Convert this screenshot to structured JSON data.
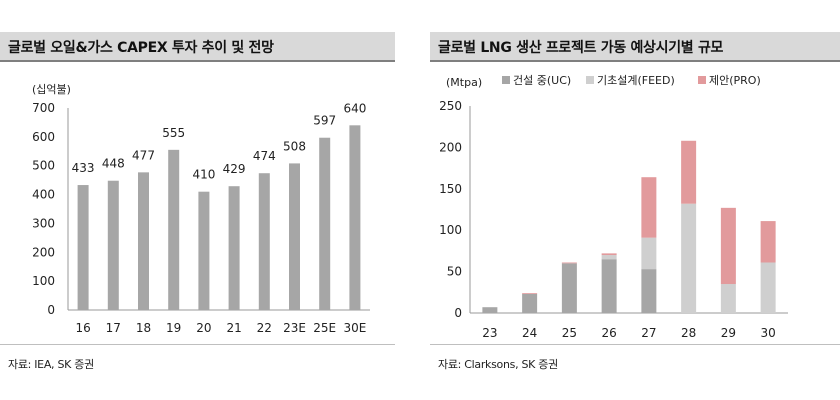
{
  "charts": {
    "left": {
      "title": "글로벌 오일&가스 CAPEX 투자 추이 및 전망",
      "source": "자료: IEA, SK 증권"
    },
    "right": {
      "title": "글로벌 LNG 생산 프로젝트 가동 예상시기별 규모",
      "source": "자료: Clarksons, SK 증권"
    }
  },
  "chart_data": [
    {
      "type": "bar",
      "title": "글로벌 오일&가스 CAPEX 투자 추이 및 전망",
      "unit_label": "(십억불)",
      "categories": [
        "16",
        "17",
        "18",
        "19",
        "20",
        "21",
        "22",
        "23E",
        "25E",
        "30E"
      ],
      "values": [
        433,
        448,
        477,
        555,
        410,
        429,
        474,
        508,
        597,
        640
      ],
      "data_labels": [
        "433",
        "448",
        "477",
        "555",
        "410",
        "429",
        "474",
        "508",
        "597",
        "640"
      ],
      "ylim": [
        0,
        700
      ],
      "yticks": [
        "0",
        "100",
        "200",
        "300",
        "400",
        "500",
        "600",
        "700"
      ],
      "color": "#a6a6a6"
    },
    {
      "type": "bar",
      "stacked": true,
      "title": "글로벌 LNG 생산 프로젝트 가동 예상시기별 규모",
      "unit_label": "(Mtpa)",
      "categories": [
        "23",
        "24",
        "25",
        "26",
        "27",
        "28",
        "29",
        "30"
      ],
      "series": [
        {
          "name": "건설 중(UC)",
          "values": [
            7,
            23,
            60,
            65,
            53,
            0,
            0,
            0
          ],
          "color": "#a6a6a6"
        },
        {
          "name": "기초설계(FEED)",
          "values": [
            0,
            0,
            0,
            5,
            38,
            132,
            35,
            61
          ],
          "color": "#cfcfcf"
        },
        {
          "name": "제안(PRO)",
          "values": [
            0,
            1,
            1,
            2,
            73,
            76,
            92,
            50
          ],
          "color": "#e29a9c"
        }
      ],
      "ylim": [
        0,
        250
      ],
      "yticks": [
        "0",
        "50",
        "100",
        "150",
        "200",
        "250"
      ],
      "legend": "top"
    }
  ]
}
